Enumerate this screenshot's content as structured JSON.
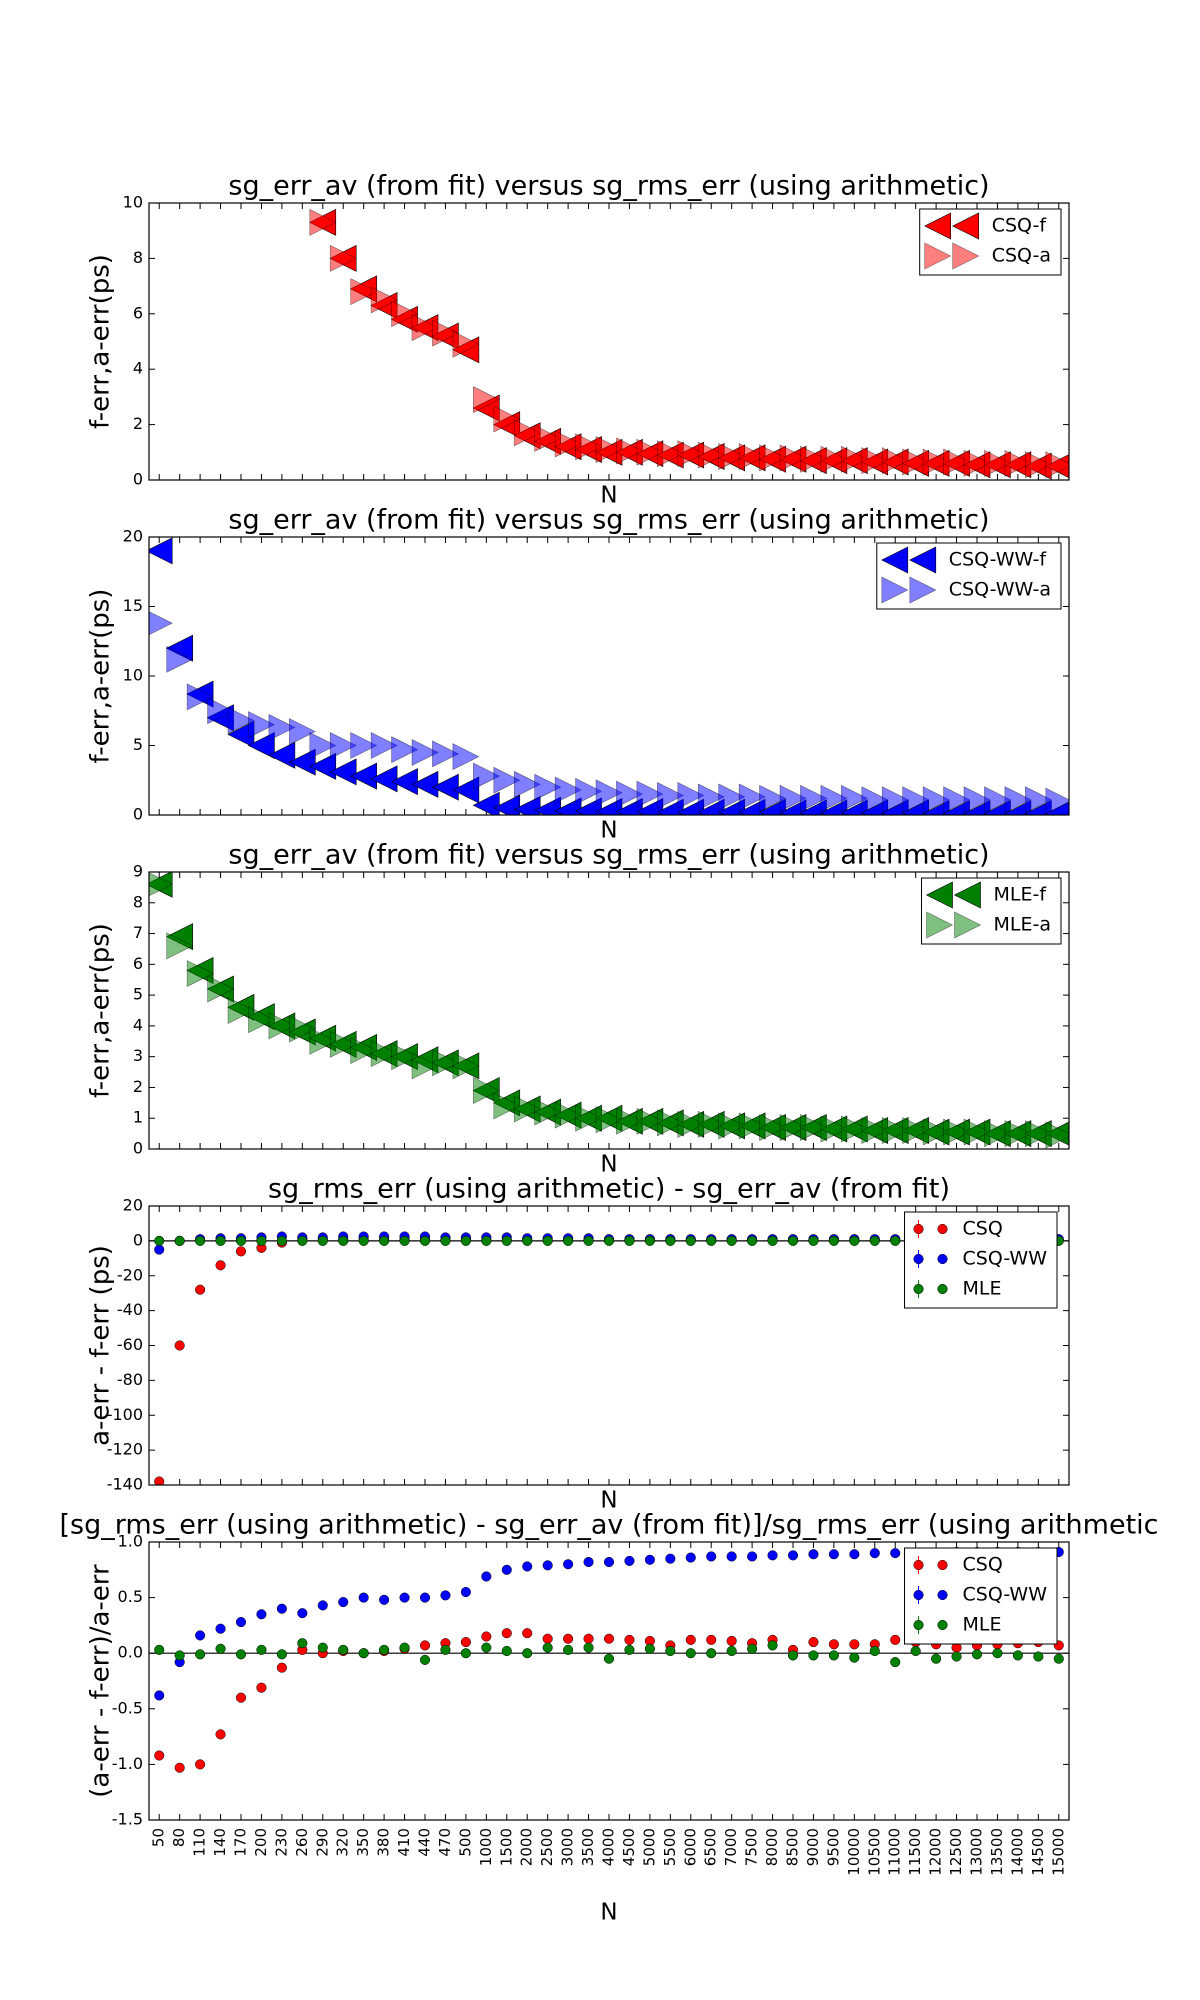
{
  "chart_data": [
    {
      "type": "scatter",
      "title": "sg_err_av (from fit) versus sg_rms_err (using arithmetic)",
      "xlabel": "N",
      "ylabel": "f-err,a-err(ps)",
      "ylim": [
        0,
        10
      ],
      "yticks": [
        0,
        2,
        4,
        6,
        8,
        10
      ],
      "legend": "upper right",
      "series": [
        {
          "name": "CSQ-f",
          "color": "#ff0000",
          "marker": "triangle-left",
          "alpha": 1,
          "values": [
            null,
            null,
            null,
            null,
            null,
            null,
            null,
            null,
            9.3,
            8.0,
            6.9,
            6.3,
            5.8,
            5.5,
            5.2,
            4.7,
            2.6,
            2.0,
            1.6,
            1.4,
            1.2,
            1.1,
            1.0,
            1.0,
            0.95,
            0.9,
            0.9,
            0.85,
            0.8,
            0.8,
            0.75,
            0.75,
            0.7,
            0.7,
            0.7,
            0.65,
            0.65,
            0.6,
            0.6,
            0.6,
            0.55,
            0.55,
            0.55,
            0.5,
            0.5
          ]
        },
        {
          "name": "CSQ-a",
          "color": "#ff0000",
          "marker": "triangle-right",
          "alpha": 0.5,
          "values": [
            null,
            null,
            null,
            null,
            null,
            null,
            null,
            null,
            9.3,
            8.0,
            6.8,
            6.5,
            6.0,
            5.5,
            5.3,
            4.9,
            2.9,
            2.2,
            1.7,
            1.5,
            1.3,
            1.2,
            1.1,
            1.05,
            1.0,
            0.95,
            0.95,
            0.9,
            0.85,
            0.85,
            0.8,
            0.8,
            0.75,
            0.75,
            0.75,
            0.7,
            0.7,
            0.65,
            0.65,
            0.65,
            0.6,
            0.6,
            0.6,
            0.55,
            0.55
          ]
        }
      ]
    },
    {
      "type": "scatter",
      "title": "sg_err_av (from fit) versus sg_rms_err (using arithmetic)",
      "xlabel": "N",
      "ylabel": "f-err,a-err(ps)",
      "ylim": [
        0,
        20
      ],
      "yticks": [
        0,
        5,
        10,
        15,
        20
      ],
      "legend": "upper right",
      "series": [
        {
          "name": "CSQ-WW-f",
          "color": "#0000ff",
          "marker": "triangle-left",
          "alpha": 1,
          "values": [
            19,
            12,
            8.7,
            7,
            5.8,
            5,
            4.3,
            3.8,
            3.5,
            3.1,
            2.8,
            2.6,
            2.4,
            2.2,
            2.0,
            1.8,
            0.7,
            0.5,
            0.4,
            0.35,
            0.3,
            0.3,
            0.25,
            0.25,
            0.25,
            0.2,
            0.2,
            0.2,
            0.2,
            0.2,
            0.2,
            0.15,
            0.15,
            0.15,
            0.15,
            0.15,
            0.15,
            0.15,
            0.1,
            0.1,
            0.1,
            0.1,
            0.1,
            0.1,
            0.1
          ]
        },
        {
          "name": "CSQ-WW-a",
          "color": "#0000ff",
          "marker": "triangle-right",
          "alpha": 0.5,
          "values": [
            13.8,
            11.2,
            8.5,
            7.5,
            6.8,
            6.5,
            6.3,
            6.0,
            5.0,
            5.0,
            5.0,
            5.0,
            4.7,
            4.5,
            4.4,
            4.2,
            2.8,
            2.5,
            2.2,
            2.0,
            1.8,
            1.7,
            1.6,
            1.5,
            1.5,
            1.4,
            1.4,
            1.3,
            1.3,
            1.3,
            1.2,
            1.2,
            1.2,
            1.2,
            1.2,
            1.1,
            1.1,
            1.1,
            1.1,
            1.1,
            1.1,
            1.1,
            1.1,
            1.1,
            1.0
          ]
        }
      ]
    },
    {
      "type": "scatter",
      "title": "sg_err_av (from fit) versus sg_rms_err (using arithmetic)",
      "xlabel": "N",
      "ylabel": "f-err,a-err(ps)",
      "ylim": [
        0,
        9
      ],
      "yticks": [
        0,
        1,
        2,
        3,
        4,
        5,
        6,
        7,
        8,
        9
      ],
      "legend": "upper right",
      "series": [
        {
          "name": "MLE-f",
          "color": "#008000",
          "marker": "triangle-left",
          "alpha": 1,
          "values": [
            8.6,
            6.9,
            5.8,
            5.2,
            4.6,
            4.3,
            4.0,
            3.8,
            3.6,
            3.4,
            3.3,
            3.1,
            3.0,
            2.9,
            2.8,
            2.7,
            1.9,
            1.5,
            1.3,
            1.2,
            1.1,
            1.0,
            1.0,
            0.9,
            0.9,
            0.85,
            0.8,
            0.8,
            0.75,
            0.75,
            0.7,
            0.7,
            0.7,
            0.65,
            0.65,
            0.6,
            0.6,
            0.6,
            0.55,
            0.55,
            0.55,
            0.5,
            0.5,
            0.5,
            0.5
          ]
        },
        {
          "name": "MLE-a",
          "color": "#008000",
          "marker": "triangle-right",
          "alpha": 0.5,
          "values": [
            8.6,
            6.6,
            5.7,
            5.2,
            4.5,
            4.2,
            4.0,
            3.9,
            3.5,
            3.4,
            3.2,
            3.1,
            3.0,
            2.7,
            2.8,
            2.7,
            1.9,
            1.4,
            1.3,
            1.2,
            1.1,
            1.0,
            0.95,
            0.9,
            0.9,
            0.85,
            0.8,
            0.8,
            0.75,
            0.75,
            0.7,
            0.7,
            0.7,
            0.65,
            0.65,
            0.6,
            0.6,
            0.6,
            0.55,
            0.55,
            0.55,
            0.5,
            0.5,
            0.5,
            0.45
          ]
        }
      ]
    },
    {
      "type": "scatter",
      "title": "sg_rms_err (using arithmetic) - sg_err_av (from fit)",
      "xlabel": "N",
      "ylabel": "a-err - f-err (ps)",
      "ylim": [
        -140,
        20
      ],
      "yticks": [
        -140,
        -120,
        -100,
        -80,
        -60,
        -40,
        -20,
        0,
        20
      ],
      "legend": "upper right",
      "zero_line": true,
      "series": [
        {
          "name": "CSQ",
          "color": "#ff0000",
          "marker": "circle",
          "values": [
            -138,
            -60,
            -28,
            -14,
            -6,
            -4,
            -1,
            1,
            1,
            1,
            1,
            1,
            1,
            1,
            1,
            1,
            0.5,
            0.5,
            0.5,
            0.5,
            0.5,
            0.5,
            0.5,
            0.5,
            0.5,
            0.5,
            0.5,
            0.5,
            0.5,
            0.5,
            0.5,
            0.5,
            0.5,
            0.5,
            0.5,
            0.5,
            0.5,
            0.5,
            0.5,
            0.5,
            0.5,
            0.5,
            0.5,
            0.5,
            0.5
          ]
        },
        {
          "name": "CSQ-WW",
          "color": "#0000ff",
          "marker": "circle",
          "values": [
            -5,
            0,
            1,
            1.5,
            1.5,
            2,
            2.5,
            2,
            2,
            2.5,
            2.5,
            2.5,
            2.5,
            2.5,
            2,
            2,
            2,
            2,
            1.5,
            1.5,
            1.5,
            1.5,
            1,
            1,
            1,
            1,
            1,
            1,
            1,
            1,
            1,
            1,
            1,
            1,
            1,
            1,
            1,
            1,
            1,
            1,
            1,
            1,
            1,
            1,
            1
          ]
        },
        {
          "name": "MLE",
          "color": "#008000",
          "marker": "circle",
          "values": [
            0,
            0,
            0,
            0,
            0,
            0,
            0,
            0,
            0,
            0,
            0,
            0,
            0,
            0,
            0,
            0,
            0,
            0,
            0,
            0,
            0,
            0,
            0,
            0,
            0,
            0,
            0,
            0,
            0,
            0,
            0,
            0,
            0,
            0,
            0,
            0,
            0,
            0,
            0,
            0,
            0,
            0,
            0,
            0,
            0
          ]
        }
      ]
    },
    {
      "type": "scatter",
      "title": "[sg_rms_err (using arithmetic) - sg_err_av (from fit)]/sg_rms_err (using arithmetic",
      "xlabel": "N",
      "ylabel": "(a-err - f-err)/a-err",
      "categories": [
        "50",
        "80",
        "110",
        "140",
        "170",
        "200",
        "230",
        "260",
        "290",
        "320",
        "350",
        "380",
        "410",
        "440",
        "470",
        "500",
        "1000",
        "1500",
        "2000",
        "2500",
        "3000",
        "3500",
        "4000",
        "4500",
        "5000",
        "5500",
        "6000",
        "6500",
        "7000",
        "7500",
        "8000",
        "8500",
        "9000",
        "9500",
        "10000",
        "10500",
        "11000",
        "11500",
        "12000",
        "12500",
        "13000",
        "13500",
        "14000",
        "14500",
        "15000"
      ],
      "ylim": [
        -1.5,
        1.0
      ],
      "yticks": [
        -1.5,
        {
          "value": -1.0,
          "label": "-1.0"
        },
        -0.5,
        {
          "value": 0,
          "label": "0.0"
        },
        0.5,
        {
          "value": 1.0,
          "label": "1.0"
        }
      ],
      "legend": "upper right",
      "zero_line": true,
      "series": [
        {
          "name": "CSQ",
          "color": "#ff0000",
          "marker": "circle",
          "values": [
            -0.92,
            -1.03,
            -1.0,
            -0.73,
            -0.4,
            -0.31,
            -0.13,
            0.03,
            0.0,
            0.02,
            0.0,
            0.02,
            0.04,
            0.07,
            0.09,
            0.1,
            0.15,
            0.18,
            0.18,
            0.13,
            0.13,
            0.13,
            0.13,
            0.12,
            0.11,
            0.07,
            0.12,
            0.12,
            0.11,
            0.09,
            0.12,
            0.03,
            0.1,
            0.08,
            0.08,
            0.08,
            0.12,
            0.1,
            0.08,
            0.05,
            0.07,
            0.08,
            0.09,
            0.1,
            0.07
          ]
        },
        {
          "name": "CSQ-WW",
          "color": "#0000ff",
          "marker": "circle",
          "values": [
            -0.38,
            -0.08,
            0.16,
            0.22,
            0.28,
            0.35,
            0.4,
            0.36,
            0.43,
            0.46,
            0.5,
            0.48,
            0.5,
            0.5,
            0.52,
            0.55,
            0.69,
            0.75,
            0.78,
            0.79,
            0.8,
            0.82,
            0.82,
            0.83,
            0.84,
            0.85,
            0.86,
            0.87,
            0.87,
            0.87,
            0.88,
            0.88,
            0.89,
            0.89,
            0.89,
            0.9,
            0.9,
            0.9,
            0.9,
            0.91,
            0.91,
            0.91,
            0.91,
            0.91,
            0.91
          ]
        },
        {
          "name": "MLE",
          "color": "#008000",
          "marker": "circle",
          "values": [
            0.03,
            -0.02,
            -0.01,
            0.04,
            -0.01,
            0.03,
            -0.01,
            0.09,
            0.05,
            0.03,
            0.0,
            0.03,
            0.05,
            -0.06,
            0.03,
            0.0,
            0.05,
            0.02,
            0.0,
            0.05,
            0.03,
            0.05,
            -0.05,
            0.03,
            0.04,
            0.02,
            0.0,
            0.0,
            0.02,
            0.04,
            0.07,
            -0.02,
            -0.02,
            -0.02,
            -0.04,
            0.02,
            -0.08,
            0.02,
            -0.05,
            -0.03,
            -0.01,
            0.0,
            -0.02,
            -0.03,
            -0.05
          ]
        }
      ]
    }
  ]
}
